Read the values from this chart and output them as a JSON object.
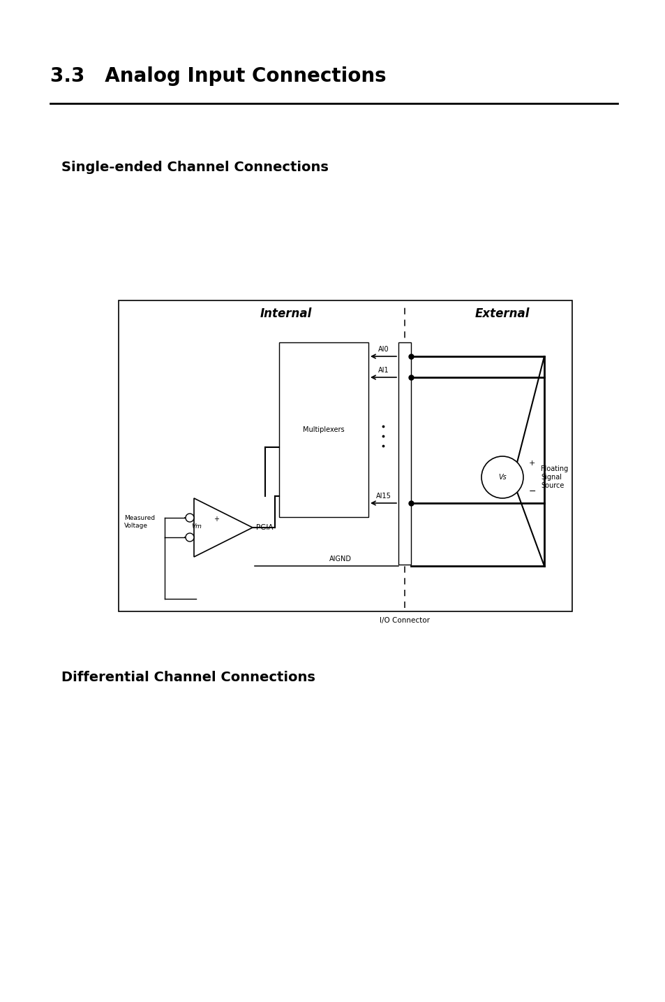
{
  "title": "3.3   Analog Input Connections",
  "subtitle1": "Single-ended Channel Connections",
  "subtitle2": "Differential Channel Connections",
  "bg_color": "#ffffff",
  "internal_label": "Internal",
  "external_label": "External",
  "mux_label": "Multiplexers",
  "pgia_label": "PGIA",
  "ai0": "AI0",
  "ai1": "AI1",
  "ai15": "AI15",
  "aignd": "AIGND",
  "connector_label": "I/O Connector",
  "measured_voltage": "Measured\nVoltage",
  "vm": "Vm",
  "vs": "Vs",
  "floating": "Floating\nSignal\nSource",
  "plus": "+",
  "minus": "−"
}
